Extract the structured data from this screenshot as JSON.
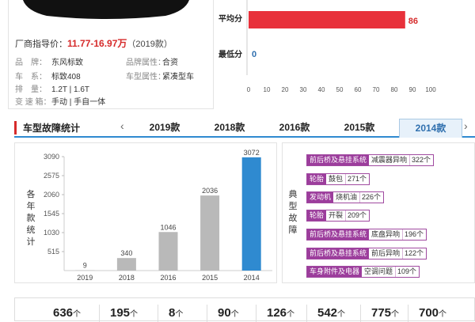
{
  "car": {
    "guide_price_label": "厂商指导价：",
    "guide_price_value": "11.77-16.97万",
    "guide_price_year": "（2019款）",
    "specs": [
      {
        "k": "品　牌：",
        "v": "东风标致"
      },
      {
        "k": "车　系：",
        "v": "标致408"
      },
      {
        "k": "排　量：",
        "v": "1.2T | 1.6T"
      },
      {
        "k": "变 速 箱：",
        "v": "手动 | 手自一体"
      },
      {
        "k": "品牌属性：",
        "v": "合资"
      },
      {
        "k": "车型属性：",
        "v": "紧凑型车"
      }
    ]
  },
  "score_chart": {
    "rows": [
      {
        "label": "平均分",
        "value": 86
      },
      {
        "label": "最低分",
        "value": 0
      }
    ],
    "ticks": [
      "0",
      "10",
      "20",
      "30",
      "40",
      "50",
      "60",
      "70",
      "80",
      "90",
      "100"
    ],
    "colors": {
      "bar": "#e8313b",
      "value": "#d62b2b",
      "zero": "#2f6fae"
    }
  },
  "tabs": {
    "section_title": "车型故障统计",
    "prev": "‹",
    "next": "›",
    "items": [
      "2019款",
      "2018款",
      "2016款",
      "2015款",
      "2014款"
    ],
    "active": "2014款"
  },
  "chart_data": {
    "type": "bar",
    "ylabel": "各年款统计",
    "categories": [
      "2019",
      "2018",
      "2016",
      "2015",
      "2014"
    ],
    "values": [
      9,
      340,
      1046,
      2036,
      3072
    ],
    "ylim": [
      0,
      3090
    ],
    "yticks": [
      "515",
      "1030",
      "1545",
      "2060",
      "2575",
      "3090"
    ],
    "colors": {
      "bar": "#b9b9b9",
      "highlight": "#2f8ad0"
    },
    "highlight": "2014"
  },
  "faults": {
    "title": "典型故障",
    "items": [
      {
        "cat": "前后桥及悬挂系统",
        "sub": "减震器异响",
        "cnt": "322个"
      },
      {
        "cat": "轮胎",
        "sub": "鼓包",
        "cnt": "271个"
      },
      {
        "cat": "发动机",
        "sub": "烧机油",
        "cnt": "226个"
      },
      {
        "cat": "轮胎",
        "sub": "开裂",
        "cnt": "209个"
      },
      {
        "cat": "前后桥及悬挂系统",
        "sub": "底盘异响",
        "cnt": "196个"
      },
      {
        "cat": "前后桥及悬挂系统",
        "sub": "前后异响",
        "cnt": "122个"
      },
      {
        "cat": "车身附件及电器",
        "sub": "空调问题",
        "cnt": "109个"
      }
    ]
  },
  "summary": {
    "unit": "个",
    "values": [
      "636",
      "195",
      "8",
      "90",
      "126",
      "542",
      "775",
      "700"
    ]
  }
}
